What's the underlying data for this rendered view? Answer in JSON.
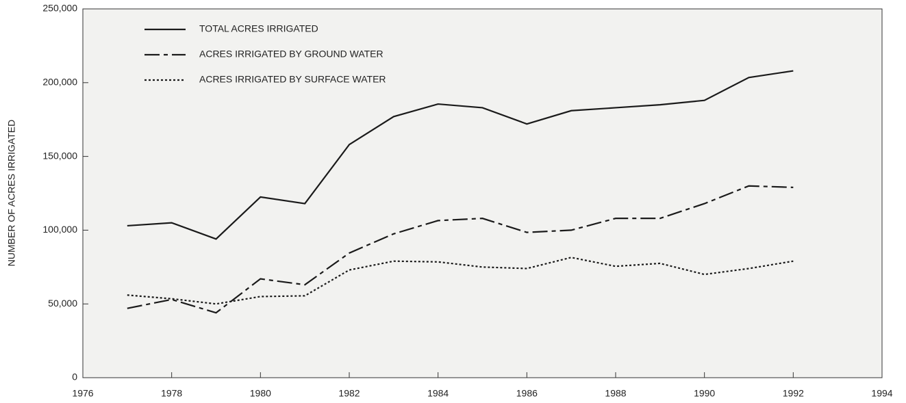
{
  "chart_data": {
    "type": "line",
    "y_label": "NUMBER OF ACRES IRRIGATED",
    "x": [
      1977,
      1978,
      1979,
      1980,
      1981,
      1982,
      1983,
      1984,
      1985,
      1986,
      1987,
      1988,
      1989,
      1990,
      1991,
      1992
    ],
    "series": [
      {
        "name": "TOTAL ACRES IRRIGATED",
        "color": "#1a1a1a",
        "style": "solid",
        "values": [
          103000,
          105000,
          94000,
          122500,
          118000,
          158000,
          177000,
          185500,
          183000,
          172000,
          181000,
          183000,
          185000,
          188000,
          203500,
          208000
        ]
      },
      {
        "name": "ACRES IRRIGATED BY GROUND WATER",
        "color": "#1a1a1a",
        "style": "dashed",
        "values": [
          47000,
          53000,
          44000,
          67000,
          63000,
          84500,
          97500,
          106500,
          108000,
          98500,
          100000,
          108000,
          108000,
          118000,
          130000,
          129000
        ]
      },
      {
        "name": "ACRES IRRIGATED BY SURFACE WATER",
        "color": "#1a1a1a",
        "style": "dotted",
        "values": [
          56000,
          53500,
          50000,
          55000,
          55500,
          73000,
          79000,
          78500,
          75000,
          74000,
          81500,
          75500,
          77500,
          70000,
          74000,
          79000
        ]
      }
    ],
    "xlim": [
      1976,
      1994
    ],
    "xticks": [
      1976,
      1978,
      1980,
      1982,
      1984,
      1986,
      1988,
      1990,
      1992,
      1994
    ],
    "ylim": [
      0,
      250000
    ],
    "yticks": [
      0,
      {
        "value": 50000,
        "label": "50,000"
      },
      {
        "value": 100000,
        "label": "100,000"
      },
      {
        "value": 150000,
        "label": "150,000"
      },
      {
        "value": 200000,
        "label": "200,000"
      },
      {
        "value": 250000,
        "label": "250,000"
      }
    ],
    "legend": "upper left"
  }
}
